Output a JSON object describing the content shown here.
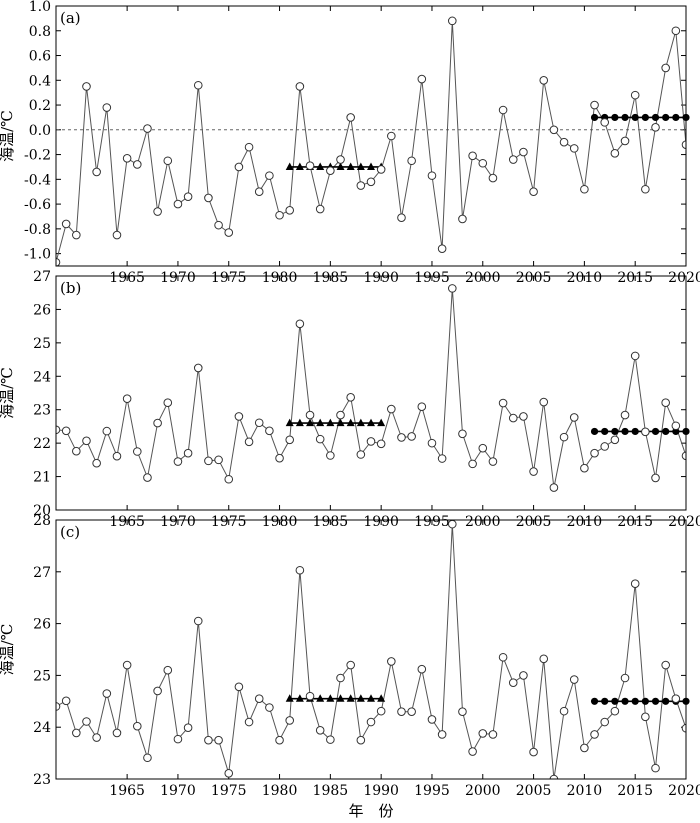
{
  "figure": {
    "xlabel": "年　份"
  },
  "chart_data": [
    {
      "panel_label": "(a)",
      "type": "line",
      "ylabel": "海温/℃",
      "xlim": [
        1958,
        2020
      ],
      "ylim": [
        -1.1,
        1.0
      ],
      "yticks": [
        -1.0,
        -0.8,
        -0.6,
        -0.4,
        -0.2,
        0.0,
        0.2,
        0.4,
        0.6,
        0.8,
        1.0
      ],
      "ytick_labels": [
        "-1.0",
        "-0.8",
        "-0.6",
        "-0.4",
        "-0.2",
        "0.0",
        "0.2",
        "0.4",
        "0.6",
        "0.8",
        "1.0"
      ],
      "zero_line": 0.0,
      "x": [
        1958,
        1959,
        1960,
        1961,
        1962,
        1963,
        1964,
        1965,
        1966,
        1967,
        1968,
        1969,
        1970,
        1971,
        1972,
        1973,
        1974,
        1975,
        1976,
        1977,
        1978,
        1979,
        1980,
        1981,
        1982,
        1983,
        1984,
        1985,
        1986,
        1987,
        1988,
        1989,
        1990,
        1991,
        1992,
        1993,
        1994,
        1995,
        1996,
        1997,
        1998,
        1999,
        2000,
        2001,
        2002,
        2003,
        2004,
        2005,
        2006,
        2007,
        2008,
        2009,
        2010,
        2011,
        2012,
        2013,
        2014,
        2015,
        2016,
        2017,
        2018,
        2019,
        2020
      ],
      "values": [
        -1.07,
        -0.76,
        -0.85,
        0.35,
        -0.34,
        0.18,
        -0.85,
        -0.23,
        -0.28,
        0.01,
        -0.66,
        -0.25,
        -0.6,
        -0.54,
        0.36,
        -0.55,
        -0.77,
        -0.83,
        -0.3,
        -0.14,
        -0.5,
        -0.37,
        -0.69,
        -0.65,
        0.35,
        -0.29,
        -0.64,
        -0.33,
        -0.24,
        0.1,
        -0.45,
        -0.42,
        -0.32,
        -0.05,
        -0.71,
        -0.25,
        0.41,
        -0.37,
        -0.96,
        0.88,
        -0.72,
        -0.21,
        -0.27,
        -0.39,
        0.16,
        -0.24,
        -0.18,
        -0.5,
        0.4,
        0.0,
        -0.1,
        -0.15,
        -0.48,
        0.2,
        0.06,
        -0.19,
        -0.09,
        0.28,
        -0.48,
        0.02,
        0.5,
        0.8,
        -0.12
      ],
      "mean_1981_1990": -0.3,
      "mean_2011_2020": 0.1
    },
    {
      "panel_label": "(b)",
      "type": "line",
      "ylabel": "海温/℃",
      "xlim": [
        1958,
        2020
      ],
      "ylim": [
        20,
        27
      ],
      "yticks": [
        20,
        21,
        22,
        23,
        24,
        25,
        26,
        27
      ],
      "ytick_labels": [
        "20",
        "21",
        "22",
        "23",
        "24",
        "25",
        "26",
        "27"
      ],
      "x": [
        1958,
        1959,
        1960,
        1961,
        1962,
        1963,
        1964,
        1965,
        1966,
        1967,
        1968,
        1969,
        1970,
        1971,
        1972,
        1973,
        1974,
        1975,
        1976,
        1977,
        1978,
        1979,
        1980,
        1981,
        1982,
        1983,
        1984,
        1985,
        1986,
        1987,
        1988,
        1989,
        1990,
        1991,
        1992,
        1993,
        1994,
        1995,
        1996,
        1997,
        1998,
        1999,
        2000,
        2001,
        2002,
        2003,
        2004,
        2005,
        2006,
        2007,
        2008,
        2009,
        2010,
        2011,
        2012,
        2013,
        2014,
        2015,
        2016,
        2017,
        2018,
        2019,
        2020
      ],
      "values": [
        22.4,
        22.37,
        21.76,
        22.07,
        21.4,
        22.36,
        21.61,
        23.33,
        21.75,
        20.97,
        22.6,
        23.21,
        21.45,
        21.7,
        24.25,
        21.47,
        21.5,
        20.92,
        22.8,
        22.04,
        22.61,
        22.37,
        21.55,
        22.1,
        25.57,
        22.84,
        22.12,
        21.63,
        22.84,
        23.37,
        21.66,
        22.05,
        21.98,
        23.02,
        22.17,
        22.2,
        23.09,
        22.0,
        21.54,
        26.63,
        22.28,
        21.38,
        21.85,
        21.45,
        23.2,
        22.75,
        22.8,
        21.15,
        23.23,
        20.67,
        22.18,
        22.77,
        21.25,
        21.7,
        21.9,
        22.1,
        22.84,
        24.61,
        22.34,
        20.96,
        23.21,
        22.52,
        21.62
      ],
      "mean_1981_1990": 22.6,
      "mean_2011_2020": 22.35
    },
    {
      "panel_label": "(c)",
      "type": "line",
      "ylabel": "海温/℃",
      "xlim": [
        1958,
        2020
      ],
      "ylim": [
        23,
        28
      ],
      "yticks": [
        23,
        24,
        25,
        26,
        27,
        28
      ],
      "ytick_labels": [
        "23",
        "24",
        "25",
        "26",
        "27",
        "28"
      ],
      "x": [
        1958,
        1959,
        1960,
        1961,
        1962,
        1963,
        1964,
        1965,
        1966,
        1967,
        1968,
        1969,
        1970,
        1971,
        1972,
        1973,
        1974,
        1975,
        1976,
        1977,
        1978,
        1979,
        1980,
        1981,
        1982,
        1983,
        1984,
        1985,
        1986,
        1987,
        1988,
        1989,
        1990,
        1991,
        1992,
        1993,
        1994,
        1995,
        1996,
        1997,
        1998,
        1999,
        2000,
        2001,
        2002,
        2003,
        2004,
        2005,
        2006,
        2007,
        2008,
        2009,
        2010,
        2011,
        2012,
        2013,
        2014,
        2015,
        2016,
        2017,
        2018,
        2019,
        2020
      ],
      "values": [
        24.4,
        24.51,
        23.89,
        24.11,
        23.8,
        24.65,
        23.89,
        25.2,
        24.02,
        23.41,
        24.7,
        25.1,
        23.77,
        23.99,
        26.05,
        23.75,
        23.75,
        23.11,
        24.78,
        24.1,
        24.55,
        24.38,
        23.75,
        24.13,
        27.03,
        24.6,
        23.94,
        23.76,
        24.95,
        25.2,
        23.75,
        24.1,
        24.31,
        25.27,
        24.3,
        24.3,
        25.12,
        24.15,
        23.86,
        27.92,
        24.3,
        23.53,
        23.88,
        23.86,
        25.35,
        24.86,
        25.0,
        23.52,
        25.32,
        23.0,
        24.31,
        24.92,
        23.6,
        23.86,
        24.1,
        24.31,
        24.95,
        26.77,
        24.2,
        23.21,
        25.2,
        24.55,
        23.98
      ],
      "mean_1981_1990": 24.55,
      "mean_2011_2020": 24.5
    }
  ],
  "xtick_labels": [
    "1965",
    "1970",
    "1975",
    "1980",
    "1985",
    "1990",
    "1995",
    "2000",
    "2005",
    "2010",
    "2015",
    "2020"
  ],
  "xticks": [
    1965,
    1970,
    1975,
    1980,
    1985,
    1990,
    1995,
    2000,
    2005,
    2010,
    2015,
    2020
  ],
  "colors": {
    "line": "#555555",
    "marker_fill": "#ffffff",
    "marker_stroke": "#333333",
    "mean_marker": "#000000",
    "zero_line": "#666666"
  }
}
